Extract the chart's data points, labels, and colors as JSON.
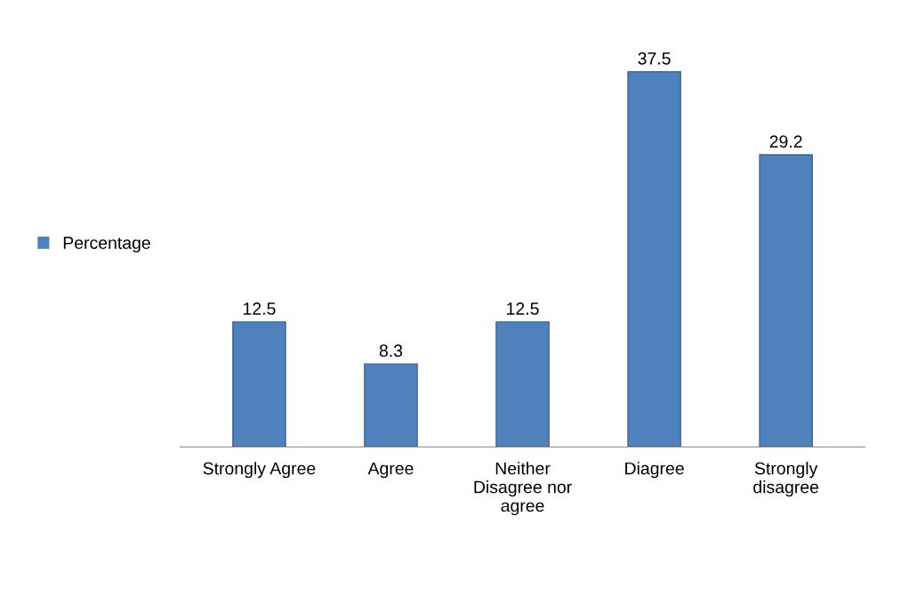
{
  "chart_data": {
    "type": "bar",
    "categories": [
      "Strongly Agree",
      "Agree",
      "Neither\nDisagree nor\nagree",
      "Diagree",
      "Strongly\ndisagree"
    ],
    "series": [
      {
        "name": "Percentage",
        "color": "#4f81bd",
        "values": [
          12.5,
          8.3,
          12.5,
          37.5,
          29.2
        ]
      }
    ],
    "data_labels": true,
    "legend": "left",
    "grid": false
  }
}
